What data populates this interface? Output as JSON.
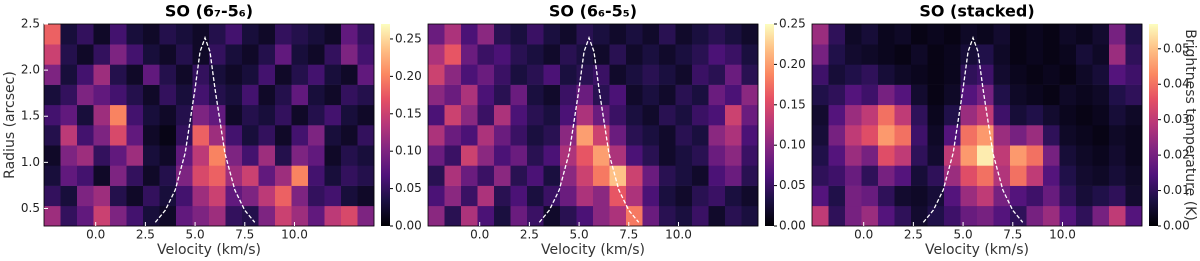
{
  "chart_data": [
    {
      "type": "heatmap",
      "title": "SO (6₇-5₆)",
      "xlabel": "Velocity (km/s)",
      "ylabel": "Radius (arcsec)",
      "colormap": "magma",
      "xlim": [
        -2.6,
        14.0
      ],
      "ylim": [
        0.31,
        2.5
      ],
      "xticks": [
        {
          "value": 0,
          "label": "0.0"
        },
        2.5,
        {
          "value": 5,
          "label": "5.0"
        },
        7.5,
        {
          "value": 10,
          "label": "10.0"
        }
      ],
      "yticks": [
        0.5,
        {
          "value": 1,
          "label": "1.0"
        },
        1.5,
        {
          "value": 2,
          "label": "2.0"
        },
        2.5
      ],
      "clim": [
        0,
        0.27
      ],
      "cticks": [
        {
          "value": 0,
          "label": "0.00"
        },
        0.05,
        {
          "value": 0.1,
          "label": "0.10"
        },
        0.15,
        {
          "value": 0.2,
          "label": "0.20"
        },
        0.25
      ],
      "xbins": [
        -2.6,
        -1.77,
        -0.94,
        -0.11,
        0.72,
        1.55,
        2.38,
        3.21,
        4.04,
        4.87,
        5.7,
        6.53,
        7.36,
        8.19,
        9.02,
        9.85,
        10.68,
        11.51,
        12.34,
        13.17,
        14.0
      ],
      "ybins": [
        0.31,
        0.529,
        0.748,
        0.967,
        1.186,
        1.405,
        1.624,
        1.843,
        2.062,
        2.281,
        2.5
      ],
      "z": [
        [
          0.12,
          0.05,
          0.08,
          0.15,
          0.1,
          0.06,
          0.03,
          0.02,
          0.08,
          0.1,
          0.12,
          0.05,
          0.04,
          0.1,
          0.15,
          0.12,
          0.08,
          0.14,
          0.16,
          0.1
        ],
        [
          0.05,
          0.03,
          0.1,
          0.12,
          0.04,
          0.02,
          0.05,
          0.03,
          0.06,
          0.12,
          0.15,
          0.08,
          0.1,
          0.14,
          0.18,
          0.1,
          0.05,
          0.06,
          0.03,
          0.02
        ],
        [
          0.03,
          0.08,
          0.06,
          0.02,
          0.1,
          0.05,
          0.02,
          0.04,
          0.1,
          0.16,
          0.18,
          0.12,
          0.15,
          0.08,
          0.12,
          0.2,
          0.06,
          0.03,
          0.05,
          0.04
        ],
        [
          0.02,
          0.1,
          0.12,
          0.05,
          0.08,
          0.12,
          0.03,
          0.02,
          0.08,
          0.14,
          0.2,
          0.1,
          0.06,
          0.12,
          0.04,
          0.1,
          0.08,
          0.02,
          0.04,
          0.03
        ],
        [
          0.04,
          0.14,
          0.06,
          0.1,
          0.16,
          0.08,
          0.02,
          0.01,
          0.05,
          0.18,
          0.12,
          0.06,
          0.03,
          0.05,
          0.02,
          0.06,
          0.1,
          0.03,
          0.02,
          0.05
        ],
        [
          0.06,
          0.08,
          0.03,
          0.12,
          0.2,
          0.06,
          0.03,
          0.02,
          0.04,
          0.1,
          0.08,
          0.02,
          0.04,
          0.03,
          0.05,
          0.02,
          0.04,
          0.06,
          0.03,
          0.02
        ],
        [
          0.03,
          0.05,
          0.1,
          0.08,
          0.06,
          0.04,
          0.02,
          0.05,
          0.03,
          0.06,
          0.04,
          0.03,
          0.06,
          0.02,
          0.04,
          0.08,
          0.03,
          0.02,
          0.05,
          0.04
        ],
        [
          0.1,
          0.03,
          0.06,
          0.12,
          0.04,
          0.02,
          0.08,
          0.04,
          0.02,
          0.05,
          0.03,
          0.02,
          0.03,
          0.06,
          0.02,
          0.04,
          0.06,
          0.03,
          0.02,
          0.08
        ],
        [
          0.15,
          0.04,
          0.02,
          0.05,
          0.1,
          0.06,
          0.03,
          0.02,
          0.04,
          0.02,
          0.05,
          0.03,
          0.02,
          0.04,
          0.08,
          0.03,
          0.02,
          0.05,
          0.1,
          0.06
        ],
        [
          0.18,
          0.03,
          0.05,
          0.02,
          0.06,
          0.03,
          0.02,
          0.04,
          0.03,
          0.02,
          0.04,
          0.06,
          0.03,
          0.02,
          0.05,
          0.04,
          0.03,
          0.02,
          0.08,
          0.05
        ]
      ],
      "curve": {
        "color": "#ffffff",
        "dashed": true,
        "x": [
          3.0,
          3.5,
          4.0,
          4.5,
          5.0,
          5.25,
          5.5,
          5.75,
          6.0,
          6.5,
          7.0,
          7.5,
          8.0
        ],
        "y": [
          0.35,
          0.48,
          0.7,
          1.1,
          1.8,
          2.2,
          2.35,
          2.2,
          1.8,
          1.1,
          0.7,
          0.48,
          0.35
        ]
      }
    },
    {
      "type": "heatmap",
      "title": "SO (6₆-5₅)",
      "xlabel": "Velocity (km/s)",
      "colormap": "magma",
      "xlim": [
        -2.6,
        14.0
      ],
      "ylim": [
        0.31,
        2.5
      ],
      "xticks": [
        {
          "value": 0,
          "label": "0.0"
        },
        2.5,
        {
          "value": 5,
          "label": "5.0"
        },
        7.5,
        {
          "value": 10,
          "label": "10.0"
        }
      ],
      "clim": [
        0,
        0.25
      ],
      "cticks": [
        {
          "value": 0,
          "label": "0.00"
        },
        0.05,
        {
          "value": 0.1,
          "label": "0.10"
        },
        0.15,
        {
          "value": 0.2,
          "label": "0.20"
        },
        0.25
      ],
      "xbins": [
        -2.6,
        -1.77,
        -0.94,
        -0.11,
        0.72,
        1.55,
        2.38,
        3.21,
        4.04,
        4.87,
        5.7,
        6.53,
        7.36,
        8.19,
        9.02,
        9.85,
        10.68,
        11.51,
        12.34,
        13.17,
        14.0
      ],
      "ybins": [
        0.31,
        0.529,
        0.748,
        0.967,
        1.186,
        1.405,
        1.624,
        1.843,
        2.062,
        2.281,
        2.5
      ],
      "z": [
        [
          0.1,
          0.04,
          0.12,
          0.06,
          0.03,
          0.08,
          0.05,
          0.02,
          0.04,
          0.06,
          0.1,
          0.12,
          0.18,
          0.08,
          0.04,
          0.03,
          0.05,
          0.02,
          0.04,
          0.03
        ],
        [
          0.06,
          0.1,
          0.05,
          0.12,
          0.04,
          0.06,
          0.03,
          0.05,
          0.08,
          0.12,
          0.1,
          0.16,
          0.12,
          0.06,
          0.03,
          0.02,
          0.04,
          0.05,
          0.03,
          0.02
        ],
        [
          0.04,
          0.12,
          0.08,
          0.05,
          0.1,
          0.04,
          0.06,
          0.03,
          0.1,
          0.14,
          0.18,
          0.22,
          0.14,
          0.08,
          0.04,
          0.03,
          0.02,
          0.06,
          0.08,
          0.04
        ],
        [
          0.08,
          0.05,
          0.14,
          0.1,
          0.06,
          0.08,
          0.04,
          0.06,
          0.12,
          0.16,
          0.2,
          0.12,
          0.06,
          0.04,
          0.02,
          0.03,
          0.04,
          0.08,
          0.1,
          0.05
        ],
        [
          0.12,
          0.08,
          0.06,
          0.12,
          0.08,
          0.05,
          0.03,
          0.04,
          0.1,
          0.2,
          0.14,
          0.08,
          0.04,
          0.03,
          0.02,
          0.04,
          0.03,
          0.1,
          0.12,
          0.06
        ],
        [
          0.06,
          0.14,
          0.1,
          0.05,
          0.12,
          0.06,
          0.04,
          0.03,
          0.06,
          0.12,
          0.08,
          0.05,
          0.03,
          0.02,
          0.04,
          0.03,
          0.05,
          0.06,
          0.14,
          0.08
        ],
        [
          0.1,
          0.08,
          0.12,
          0.06,
          0.04,
          0.08,
          0.03,
          0.02,
          0.05,
          0.08,
          0.04,
          0.06,
          0.02,
          0.03,
          0.02,
          0.04,
          0.03,
          0.08,
          0.06,
          0.1
        ],
        [
          0.14,
          0.1,
          0.06,
          0.08,
          0.05,
          0.03,
          0.04,
          0.06,
          0.03,
          0.04,
          0.05,
          0.02,
          0.03,
          0.04,
          0.03,
          0.02,
          0.05,
          0.04,
          0.08,
          0.04
        ],
        [
          0.12,
          0.16,
          0.08,
          0.05,
          0.06,
          0.04,
          0.03,
          0.02,
          0.04,
          0.03,
          0.02,
          0.04,
          0.02,
          0.03,
          0.02,
          0.03,
          0.04,
          0.06,
          0.05,
          0.03
        ],
        [
          0.08,
          0.12,
          0.06,
          0.1,
          0.04,
          0.03,
          0.05,
          0.03,
          0.02,
          0.04,
          0.03,
          0.02,
          0.03,
          0.02,
          0.04,
          0.02,
          0.03,
          0.04,
          0.03,
          0.02
        ]
      ],
      "curve": {
        "color": "#ffffff",
        "dashed": true,
        "x": [
          3.0,
          3.5,
          4.0,
          4.5,
          5.0,
          5.25,
          5.5,
          5.75,
          6.0,
          6.5,
          7.0,
          7.5,
          8.0
        ],
        "y": [
          0.35,
          0.48,
          0.7,
          1.1,
          1.8,
          2.2,
          2.35,
          2.2,
          1.8,
          1.1,
          0.7,
          0.48,
          0.35
        ]
      }
    },
    {
      "type": "heatmap",
      "title": "SO (stacked)",
      "xlabel": "Velocity (km/s)",
      "colorbar_label": "Brightness temperature (K)",
      "colormap": "magma",
      "xlim": [
        -2.6,
        14.0
      ],
      "ylim": [
        0.31,
        2.5
      ],
      "xticks": [
        {
          "value": 0,
          "label": "0.0"
        },
        2.5,
        {
          "value": 5,
          "label": "5.0"
        },
        7.5,
        {
          "value": 10,
          "label": "10.0"
        }
      ],
      "clim": [
        0,
        0.057
      ],
      "cticks": [
        {
          "value": 0,
          "label": "0.00"
        },
        0.01,
        0.02,
        0.03,
        0.04,
        0.05
      ],
      "xbins": [
        -2.6,
        -1.77,
        -0.94,
        -0.11,
        0.72,
        1.55,
        2.38,
        3.21,
        4.04,
        4.87,
        5.7,
        6.53,
        7.36,
        8.19,
        9.02,
        9.85,
        10.68,
        11.51,
        12.34,
        13.17,
        14.0
      ],
      "ybins": [
        0.31,
        0.529,
        0.748,
        0.967,
        1.186,
        1.405,
        1.624,
        1.843,
        2.062,
        2.281,
        2.5
      ],
      "z": [
        [
          0.03,
          0.01,
          0.02,
          0.025,
          0.015,
          0.01,
          0.005,
          0.008,
          0.012,
          0.018,
          0.02,
          0.015,
          0.01,
          0.02,
          0.025,
          0.015,
          0.01,
          0.02,
          0.03,
          0.015
        ],
        [
          0.015,
          0.008,
          0.02,
          0.018,
          0.01,
          0.005,
          0.004,
          0.006,
          0.015,
          0.025,
          0.03,
          0.02,
          0.015,
          0.012,
          0.018,
          0.01,
          0.006,
          0.008,
          0.01,
          0.005
        ],
        [
          0.01,
          0.012,
          0.018,
          0.01,
          0.02,
          0.015,
          0.006,
          0.01,
          0.025,
          0.035,
          0.04,
          0.028,
          0.04,
          0.03,
          0.015,
          0.008,
          0.005,
          0.004,
          0.006,
          0.004
        ],
        [
          0.008,
          0.015,
          0.025,
          0.02,
          0.035,
          0.03,
          0.01,
          0.005,
          0.03,
          0.045,
          0.055,
          0.03,
          0.045,
          0.04,
          0.02,
          0.006,
          0.004,
          0.003,
          0.005,
          0.003
        ],
        [
          0.006,
          0.02,
          0.03,
          0.035,
          0.045,
          0.04,
          0.012,
          0.004,
          0.015,
          0.04,
          0.045,
          0.025,
          0.02,
          0.025,
          0.01,
          0.004,
          0.003,
          0.002,
          0.004,
          0.003
        ],
        [
          0.005,
          0.015,
          0.025,
          0.03,
          0.04,
          0.03,
          0.01,
          0.003,
          0.008,
          0.025,
          0.03,
          0.012,
          0.006,
          0.008,
          0.005,
          0.003,
          0.002,
          0.003,
          0.006,
          0.004
        ],
        [
          0.008,
          0.01,
          0.015,
          0.012,
          0.02,
          0.015,
          0.005,
          0.002,
          0.004,
          0.015,
          0.02,
          0.008,
          0.004,
          0.003,
          0.002,
          0.004,
          0.003,
          0.004,
          0.008,
          0.01
        ],
        [
          0.012,
          0.006,
          0.008,
          0.01,
          0.006,
          0.004,
          0.003,
          0.002,
          0.003,
          0.01,
          0.012,
          0.005,
          0.003,
          0.002,
          0.003,
          0.002,
          0.004,
          0.006,
          0.015,
          0.012
        ],
        [
          0.02,
          0.008,
          0.005,
          0.004,
          0.003,
          0.002,
          0.004,
          0.002,
          0.003,
          0.006,
          0.008,
          0.004,
          0.002,
          0.003,
          0.002,
          0.003,
          0.006,
          0.004,
          0.025,
          0.01
        ],
        [
          0.025,
          0.01,
          0.004,
          0.006,
          0.003,
          0.004,
          0.002,
          0.003,
          0.002,
          0.004,
          0.003,
          0.005,
          0.002,
          0.003,
          0.002,
          0.004,
          0.003,
          0.005,
          0.02,
          0.008
        ]
      ],
      "curve": {
        "color": "#ffffff",
        "dashed": true,
        "x": [
          3.0,
          3.5,
          4.0,
          4.5,
          5.0,
          5.25,
          5.5,
          5.75,
          6.0,
          6.5,
          7.0,
          7.5,
          8.0
        ],
        "y": [
          0.35,
          0.48,
          0.7,
          1.1,
          1.8,
          2.2,
          2.35,
          2.2,
          1.8,
          1.1,
          0.7,
          0.48,
          0.35
        ]
      }
    }
  ]
}
